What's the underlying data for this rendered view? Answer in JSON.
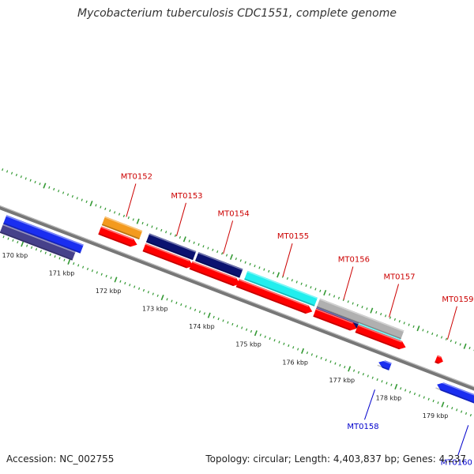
{
  "title": "Mycobacterium tuberculosis CDC1551, complete genome",
  "footer": {
    "accession": "Accession: NC_002755",
    "summary": "Topology: circular; Length: 4,403,837 bp; Genes: 4,237"
  },
  "scale": {
    "unit": "kbp",
    "start_kbp": 170,
    "end_kbp": 179,
    "labels": [
      "170 kbp",
      "171 kbp",
      "172 kbp",
      "173 kbp",
      "174 kbp",
      "175 kbp",
      "176 kbp",
      "177 kbp",
      "178 kbp",
      "179 kbp"
    ]
  },
  "colors": {
    "backbone": "#777777",
    "tick": "#339933",
    "forward_label": "#cc0000",
    "reverse_label": "#0000cc",
    "red": "#ff0000",
    "orange": "#f39a1e",
    "navy": "#0b1270",
    "cyan": "#22eeee",
    "gray": "#b0b0b0",
    "blue": "#1a2ef0",
    "slate": "#46418a"
  },
  "genes": [
    {
      "name": "MT0152",
      "strand": "forward",
      "start_kbp": 171.35,
      "end_kbp": 172.15,
      "color": "red",
      "arrow": "right"
    },
    {
      "name": "MT0153",
      "strand": "forward",
      "start_kbp": 172.3,
      "end_kbp": 173.35,
      "color": "red",
      "arrow": "right"
    },
    {
      "name": "MT0154",
      "strand": "forward",
      "start_kbp": 173.3,
      "end_kbp": 174.35,
      "color": "red",
      "arrow": "right"
    },
    {
      "name": "MT0155",
      "strand": "forward",
      "start_kbp": 174.3,
      "end_kbp": 175.9,
      "color": "red",
      "arrow": "right"
    },
    {
      "name": "MT0156",
      "strand": "forward",
      "start_kbp": 175.95,
      "end_kbp": 176.85,
      "color": "red",
      "arrow": "right"
    },
    {
      "name": "MT0157",
      "strand": "forward",
      "start_kbp": 176.85,
      "end_kbp": 177.9,
      "color": "red",
      "arrow": "right"
    },
    {
      "name": "MT0159",
      "strand": "forward",
      "start_kbp": 178.55,
      "end_kbp": 178.7,
      "color": "red",
      "arrow": "right"
    },
    {
      "name": "MT0158",
      "strand": "reverse",
      "start_kbp": 177.5,
      "end_kbp": 177.75,
      "color": "blue",
      "arrow": "left"
    },
    {
      "name": "MT0160",
      "strand": "reverse",
      "start_kbp": 178.75,
      "end_kbp": 180.5,
      "color": "blue",
      "arrow": "left"
    }
  ],
  "features": [
    {
      "lane": "forward-upper",
      "start_kbp": 171.35,
      "end_kbp": 172.15,
      "color": "orange"
    },
    {
      "lane": "forward-upper",
      "start_kbp": 172.3,
      "end_kbp": 173.3,
      "color": "navy"
    },
    {
      "lane": "forward-upper",
      "start_kbp": 173.35,
      "end_kbp": 174.3,
      "color": "navy"
    },
    {
      "lane": "forward-upper",
      "start_kbp": 174.4,
      "end_kbp": 175.9,
      "color": "cyan"
    },
    {
      "lane": "forward-upper",
      "start_kbp": 175.95,
      "end_kbp": 177.75,
      "color": "gray"
    },
    {
      "lane": "forward-mid",
      "start_kbp": 175.95,
      "end_kbp": 176.85,
      "color": "navy"
    },
    {
      "lane": "forward-mid",
      "start_kbp": 176.85,
      "end_kbp": 177.75,
      "color": "cyan"
    },
    {
      "lane": "reverse-upper",
      "start_kbp": 169.5,
      "end_kbp": 171.15,
      "color": "blue"
    },
    {
      "lane": "reverse-lower",
      "start_kbp": 169.5,
      "end_kbp": 171.05,
      "color": "slate"
    }
  ]
}
